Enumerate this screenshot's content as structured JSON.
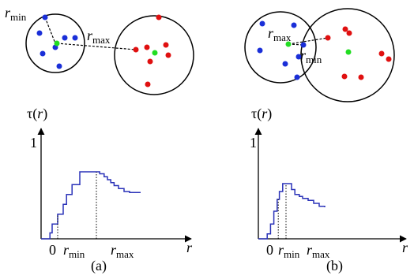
{
  "colors": {
    "blue": "#1a2fd8",
    "red": "#e01010",
    "green": "#22dd22",
    "curve": "#2a32b8",
    "ink": "#000000"
  },
  "symbols": {
    "r": "r",
    "min": "min",
    "max": "max",
    "tau": "τ",
    "tau_arg_open": "(",
    "tau_arg_close": ")",
    "one": "1",
    "zero": "0"
  },
  "panels": [
    {
      "caption": "(a)"
    },
    {
      "caption": "(b)"
    }
  ],
  "chart_data": [
    {
      "type": "line",
      "panel": "(a)",
      "ylabel": "τ(r)",
      "xlabel": "r",
      "y_ticks": [
        "1"
      ],
      "x_ticks": [
        "0",
        "r_min",
        "r_max"
      ],
      "series": [
        {
          "x": [
            0,
            0.8,
            1.0,
            1.5,
            2.0,
            2.3,
            2.8,
            3.5,
            5.0,
            5.3,
            5.7,
            6.0,
            6.3,
            6.6,
            7.0,
            7.5,
            8.0,
            9.0
          ],
          "y": [
            0,
            0.06,
            0.15,
            0.25,
            0.35,
            0.45,
            0.55,
            0.68,
            0.68,
            0.66,
            0.63,
            0.6,
            0.57,
            0.54,
            0.51,
            0.48,
            0.47,
            0.47
          ]
        }
      ],
      "r_min_marker": 1.5,
      "r_max_marker": 5.0
    },
    {
      "type": "line",
      "panel": "(b)",
      "ylabel": "τ(r)",
      "xlabel": "r",
      "y_ticks": [
        "1"
      ],
      "x_ticks": [
        "0",
        "r_min",
        "r_max"
      ],
      "series": [
        {
          "x": [
            0,
            0.8,
            1.1,
            1.4,
            1.7,
            1.9,
            2.2,
            2.5,
            3.0,
            3.3,
            3.7,
            4.0,
            4.5,
            5.0,
            5.5,
            6.0
          ],
          "y": [
            0,
            0.05,
            0.15,
            0.28,
            0.4,
            0.48,
            0.56,
            0.56,
            0.5,
            0.45,
            0.43,
            0.41,
            0.39,
            0.36,
            0.33,
            0.32
          ]
        }
      ],
      "r_min_marker": 1.8,
      "r_max_marker": 2.5
    }
  ]
}
